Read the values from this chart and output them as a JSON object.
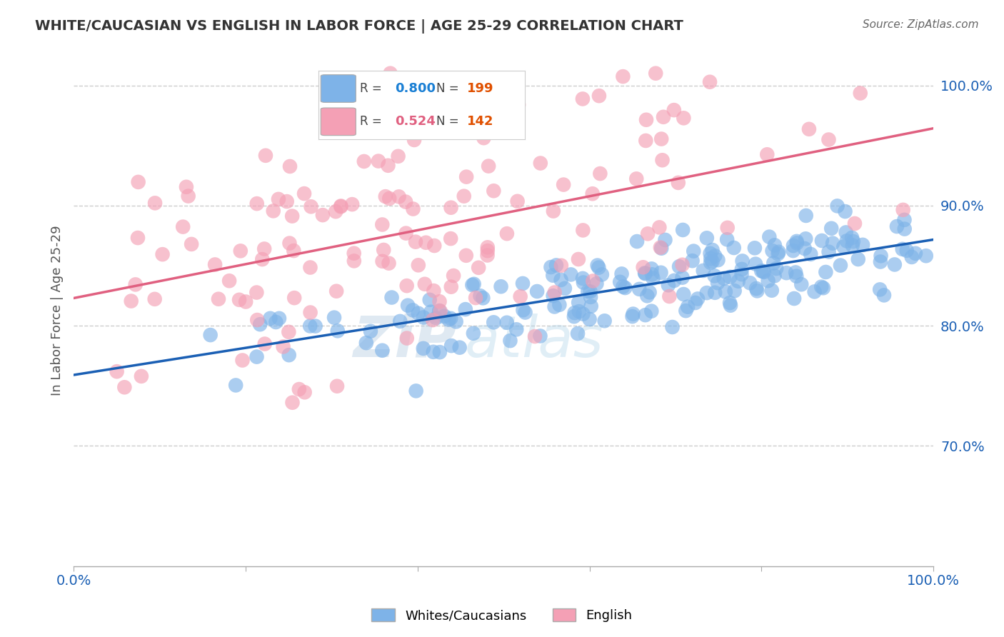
{
  "title": "WHITE/CAUCASIAN VS ENGLISH IN LABOR FORCE | AGE 25-29 CORRELATION CHART",
  "source": "Source: ZipAtlas.com",
  "ylabel": "In Labor Force | Age 25-29",
  "watermark_1": "ZiP",
  "watermark_2": "atlas",
  "blue_label": "Whites/Caucasians",
  "pink_label": "English",
  "blue_R": "0.800",
  "blue_N": "199",
  "pink_R": "0.524",
  "pink_N": "142",
  "blue_color": "#7eb3e8",
  "pink_color": "#f4a0b5",
  "blue_line_color": "#1a5fb4",
  "pink_line_color": "#e06080",
  "legend_R_color_blue": "#1a7fd4",
  "legend_R_color_pink": "#e06080",
  "legend_N_color_blue": "#e05000",
  "legend_N_color_pink": "#e05000",
  "ytick_color": "#1a5fb4",
  "xtick_color": "#1a5fb4",
  "title_color": "#333333",
  "grid_color": "#cccccc",
  "background": "#ffffff",
  "xlim": [
    0,
    1
  ],
  "ylim": [
    0.6,
    1.025
  ],
  "yticks": [
    0.7,
    0.8,
    0.9,
    1.0
  ],
  "ytick_labels": [
    "70.0%",
    "80.0%",
    "90.0%",
    "100.0%"
  ],
  "xticks": [
    0.0,
    0.2,
    0.4,
    0.6,
    0.8,
    1.0
  ],
  "xtick_labels": [
    "0.0%",
    "",
    "",
    "",
    "",
    "100.0%"
  ],
  "blue_seed": 42,
  "pink_seed": 7
}
